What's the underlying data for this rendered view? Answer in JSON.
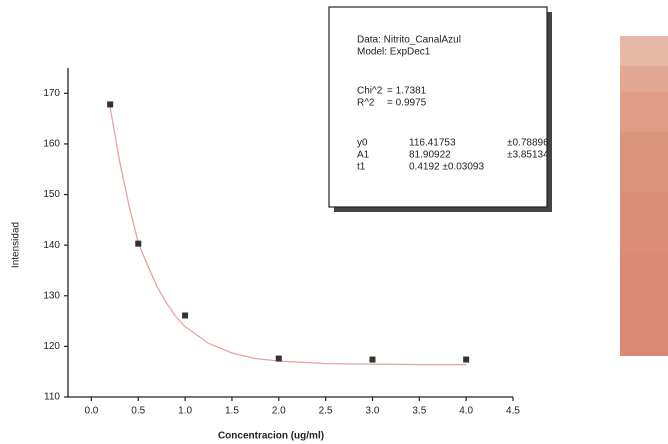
{
  "chart_data": {
    "type": "scatter",
    "x_label": "Concentracion (ug/ml)",
    "y_label": "Intensidad",
    "xlim": [
      -0.25,
      4.5
    ],
    "ylim": [
      110,
      175
    ],
    "xticks": [
      {
        "value": 0,
        "label": "0.0"
      },
      0.5,
      {
        "value": 1,
        "label": "1.0"
      },
      1.5,
      {
        "value": 2,
        "label": "2.0"
      },
      2.5,
      {
        "value": 3,
        "label": "3.0"
      },
      3.5,
      {
        "value": 4,
        "label": "4.0"
      },
      4.5
    ],
    "yticks": [
      110,
      120,
      130,
      140,
      150,
      160,
      170
    ],
    "series": [
      {
        "color": "#333333",
        "x": [
          0.2,
          0.5,
          1.0,
          2.0,
          3.0,
          4.0
        ],
        "values": [
          167.8,
          140.3,
          126.1,
          117.6,
          117.4,
          117.4
        ]
      }
    ],
    "fit": {
      "color": "#e6a3a3",
      "x": [
        0.2,
        0.3,
        0.4,
        0.5,
        0.6,
        0.7,
        0.8,
        0.9,
        1.0,
        1.25,
        1.5,
        1.75,
        2.0,
        2.5,
        3.0,
        3.5,
        4.0
      ],
      "values": [
        167.2,
        156.7,
        147.9,
        140.5,
        136.0,
        131.8,
        128.6,
        125.9,
        123.9,
        120.6,
        118.7,
        117.6,
        117.1,
        116.6,
        116.5,
        116.4,
        116.4
      ]
    },
    "annotation": {
      "header": [
        "Data: Nitrito_CanalAzul",
        "Model: ExpDec1"
      ],
      "stats": [
        [
          "Chi^2",
          "= 1.7381"
        ],
        [
          "R^2",
          "= 0.9975"
        ]
      ],
      "params": [
        [
          "y0",
          "116.41753",
          "±0.78896"
        ],
        [
          "A1",
          "81.90922",
          "±3.85134"
        ],
        [
          "t1",
          "0.4192 ±0.03093"
        ]
      ]
    }
  }
}
